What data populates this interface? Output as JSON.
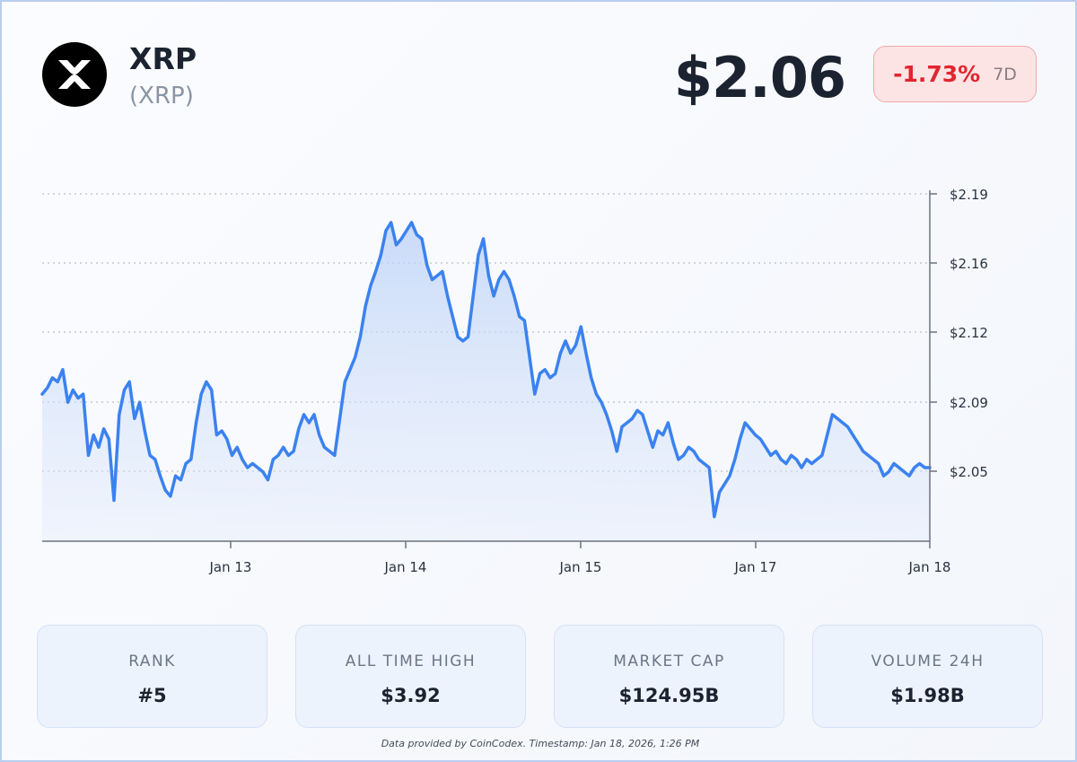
{
  "coin": {
    "name": "XRP",
    "symbol": "(XRP)",
    "logo_icon": "xrp-logo-icon"
  },
  "price": "$2.06",
  "change": {
    "value": "-1.73%",
    "period": "7D",
    "color": "#e0262f"
  },
  "chart_data": {
    "type": "area",
    "title": "",
    "xlabel": "",
    "ylabel": "",
    "x_ticks": [
      "Jan 13",
      "Jan 14",
      "Jan 15",
      "Jan 17",
      "Jan 18"
    ],
    "y_ticks": [
      "$2.19",
      "$2.16",
      "$2.12",
      "$2.09",
      "$2.05"
    ],
    "ylim": [
      2.02,
      2.19
    ],
    "grid": true,
    "line_color": "#3b82f0",
    "series": [
      {
        "values": [
          2.092,
          2.095,
          2.1,
          2.098,
          2.104,
          2.088,
          2.094,
          2.09,
          2.092,
          2.062,
          2.072,
          2.066,
          2.075,
          2.07,
          2.04,
          2.082,
          2.094,
          2.098,
          2.08,
          2.088,
          2.074,
          2.062,
          2.06,
          2.052,
          2.045,
          2.042,
          2.052,
          2.05,
          2.058,
          2.06,
          2.078,
          2.092,
          2.098,
          2.094,
          2.072,
          2.074,
          2.07,
          2.062,
          2.066,
          2.06,
          2.056,
          2.058,
          2.056,
          2.054,
          2.05,
          2.06,
          2.062,
          2.066,
          2.062,
          2.064,
          2.075,
          2.082,
          2.078,
          2.082,
          2.072,
          2.066,
          2.064,
          2.062,
          2.08,
          2.098,
          2.104,
          2.11,
          2.12,
          2.135,
          2.145,
          2.152,
          2.16,
          2.172,
          2.176,
          2.165,
          2.168,
          2.172,
          2.176,
          2.17,
          2.168,
          2.155,
          2.148,
          2.15,
          2.152,
          2.14,
          2.13,
          2.12,
          2.118,
          2.12,
          2.14,
          2.16,
          2.168,
          2.15,
          2.14,
          2.148,
          2.152,
          2.148,
          2.14,
          2.13,
          2.128,
          2.11,
          2.092,
          2.102,
          2.104,
          2.1,
          2.102,
          2.112,
          2.118,
          2.112,
          2.116,
          2.125,
          2.112,
          2.1,
          2.092,
          2.088,
          2.082,
          2.074,
          2.064,
          2.076,
          2.078,
          2.08,
          2.084,
          2.082,
          2.074,
          2.066,
          2.074,
          2.072,
          2.078,
          2.068,
          2.06,
          2.062,
          2.066,
          2.064,
          2.06,
          2.058,
          2.056,
          2.032,
          2.044,
          2.048,
          2.052,
          2.06,
          2.07,
          2.078,
          2.075,
          2.072,
          2.07,
          2.066,
          2.062,
          2.064,
          2.06,
          2.058,
          2.062,
          2.06,
          2.056,
          2.06,
          2.058,
          2.06,
          2.062,
          2.072,
          2.082,
          2.08,
          2.078,
          2.076,
          2.072,
          2.068,
          2.064,
          2.062,
          2.06,
          2.058,
          2.052,
          2.054,
          2.058,
          2.056,
          2.054,
          2.052,
          2.056,
          2.058,
          2.056,
          2.056
        ]
      }
    ]
  },
  "stats": [
    {
      "label": "RANK",
      "value": "#5"
    },
    {
      "label": "ALL TIME HIGH",
      "value": "$3.92"
    },
    {
      "label": "MARKET CAP",
      "value": "$124.95B"
    },
    {
      "label": "VOLUME 24H",
      "value": "$1.98B"
    }
  ],
  "footer": "Data provided by CoinCodex. Timestamp: Jan 18, 2026, 1:26 PM"
}
